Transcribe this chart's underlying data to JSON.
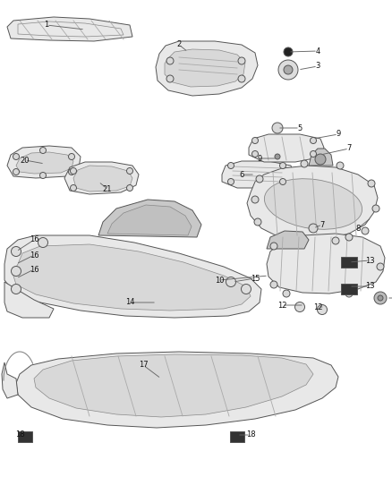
{
  "bg_color": "#ffffff",
  "edge_color": "#555555",
  "fill_light": "#e8e8e8",
  "fill_mid": "#d8d8d8",
  "fill_dark": "#c8c8c8",
  "rib_color": "#aaaaaa",
  "label_color": "#222222",
  "line_color": "#666666",
  "figsize": [
    4.38,
    5.33
  ],
  "dpi": 100
}
